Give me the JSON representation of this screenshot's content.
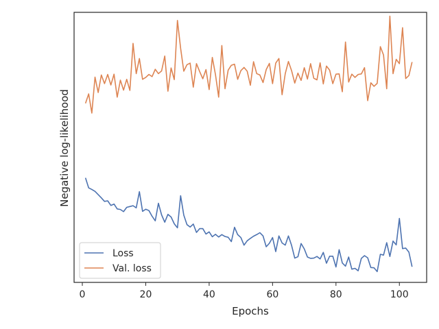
{
  "chart_data": {
    "type": "line",
    "title": "",
    "xlabel": "Epochs",
    "ylabel": "Negative log-likelihood",
    "xlim": [
      -2.6,
      108.6
    ],
    "ylim": [
      0,
      1
    ],
    "xticks": [
      0,
      20,
      40,
      60,
      80,
      100
    ],
    "yticks": [],
    "grid": false,
    "legend_position": "lower-left",
    "x": [
      1,
      2,
      3,
      4,
      5,
      6,
      7,
      8,
      9,
      10,
      11,
      12,
      13,
      14,
      15,
      16,
      17,
      18,
      19,
      20,
      21,
      22,
      23,
      24,
      25,
      26,
      27,
      28,
      29,
      30,
      31,
      32,
      33,
      34,
      35,
      36,
      37,
      38,
      39,
      40,
      41,
      42,
      43,
      44,
      45,
      46,
      47,
      48,
      49,
      50,
      51,
      52,
      53,
      54,
      55,
      56,
      57,
      58,
      59,
      60,
      61,
      62,
      63,
      64,
      65,
      66,
      67,
      68,
      69,
      70,
      71,
      72,
      73,
      74,
      75,
      76,
      77,
      78,
      79,
      80,
      81,
      82,
      83,
      84,
      85,
      86,
      87,
      88,
      89,
      90,
      91,
      92,
      93,
      94,
      95,
      96,
      97,
      98,
      99,
      100,
      101,
      102,
      103,
      104
    ],
    "series": [
      {
        "name": "Loss",
        "color": "#4c72b0",
        "values": [
          0.387,
          0.35,
          0.344,
          0.337,
          0.325,
          0.313,
          0.3,
          0.302,
          0.285,
          0.29,
          0.272,
          0.27,
          0.262,
          0.278,
          0.281,
          0.284,
          0.276,
          0.336,
          0.263,
          0.271,
          0.266,
          0.245,
          0.228,
          0.293,
          0.25,
          0.223,
          0.252,
          0.242,
          0.217,
          0.202,
          0.321,
          0.249,
          0.214,
          0.205,
          0.216,
          0.185,
          0.199,
          0.199,
          0.179,
          0.187,
          0.169,
          0.178,
          0.168,
          0.177,
          0.17,
          0.167,
          0.151,
          0.204,
          0.177,
          0.166,
          0.138,
          0.154,
          0.163,
          0.171,
          0.177,
          0.184,
          0.172,
          0.132,
          0.145,
          0.166,
          0.114,
          0.172,
          0.146,
          0.138,
          0.172,
          0.137,
          0.09,
          0.095,
          0.144,
          0.124,
          0.094,
          0.089,
          0.09,
          0.096,
          0.087,
          0.111,
          0.071,
          0.097,
          0.097,
          0.057,
          0.121,
          0.072,
          0.06,
          0.094,
          0.049,
          0.052,
          0.043,
          0.089,
          0.099,
          0.091,
          0.055,
          0.054,
          0.04,
          0.104,
          0.101,
          0.147,
          0.096,
          0.153,
          0.139,
          0.237,
          0.125,
          0.127,
          0.112,
          0.058
        ]
      },
      {
        "name": "Val. loss",
        "color": "#dd8452",
        "values": [
          0.663,
          0.698,
          0.627,
          0.76,
          0.703,
          0.768,
          0.736,
          0.77,
          0.731,
          0.771,
          0.686,
          0.749,
          0.712,
          0.752,
          0.711,
          0.885,
          0.773,
          0.829,
          0.752,
          0.759,
          0.77,
          0.762,
          0.789,
          0.773,
          0.783,
          0.838,
          0.708,
          0.794,
          0.751,
          0.97,
          0.867,
          0.782,
          0.806,
          0.812,
          0.723,
          0.81,
          0.781,
          0.754,
          0.788,
          0.714,
          0.833,
          0.769,
          0.686,
          0.877,
          0.717,
          0.786,
          0.804,
          0.808,
          0.752,
          0.784,
          0.796,
          0.782,
          0.73,
          0.817,
          0.773,
          0.768,
          0.74,
          0.788,
          0.811,
          0.736,
          0.812,
          0.829,
          0.695,
          0.773,
          0.818,
          0.784,
          0.738,
          0.775,
          0.748,
          0.795,
          0.753,
          0.81,
          0.756,
          0.75,
          0.813,
          0.735,
          0.801,
          0.786,
          0.736,
          0.771,
          0.772,
          0.706,
          0.89,
          0.742,
          0.771,
          0.759,
          0.77,
          0.772,
          0.795,
          0.673,
          0.739,
          0.726,
          0.737,
          0.873,
          0.842,
          0.717,
          0.986,
          0.773,
          0.826,
          0.81,
          0.943,
          0.755,
          0.766,
          0.816
        ]
      }
    ]
  }
}
